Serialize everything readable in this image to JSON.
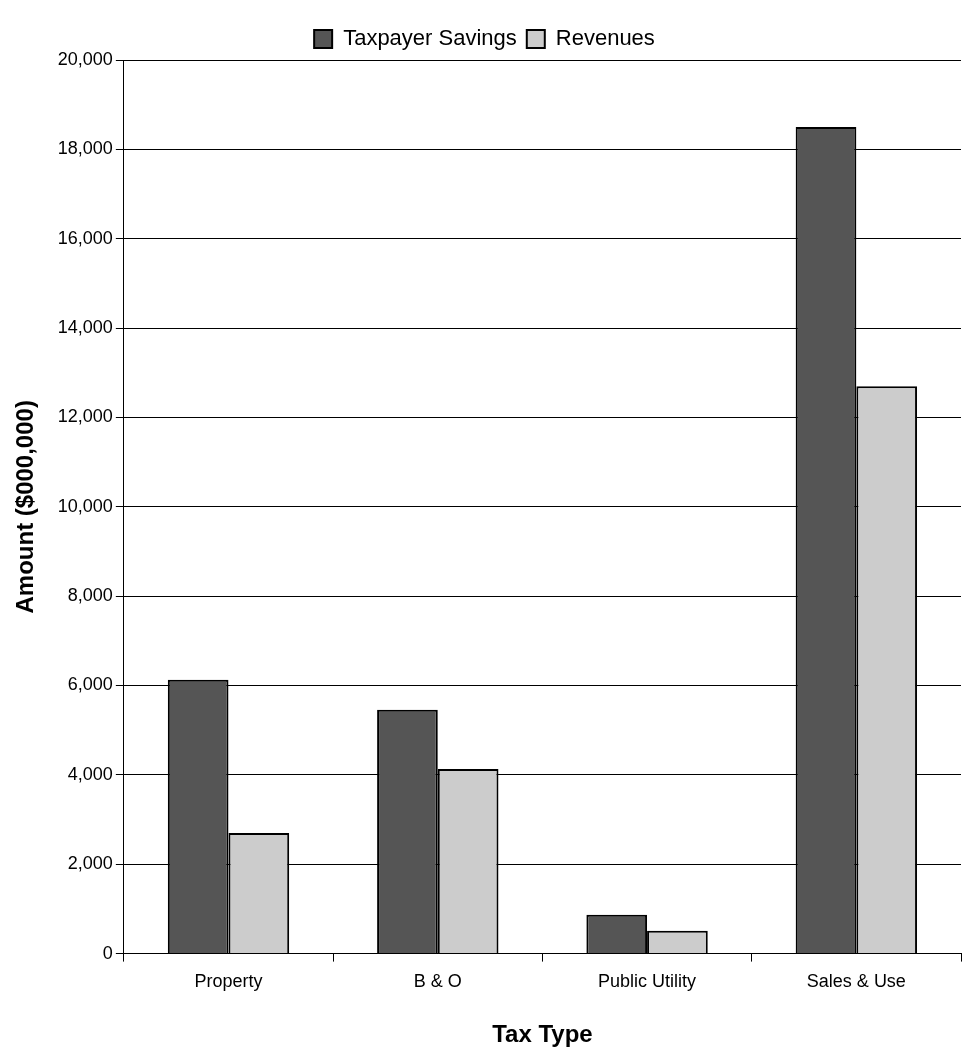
{
  "chart_data": {
    "type": "bar",
    "xlabel": "Tax Type",
    "ylabel": "Amount ($000,000)",
    "categories": [
      "Property",
      "B & O",
      "Public Utility",
      "Sales & Use"
    ],
    "series": [
      {
        "name": "Taxpayer Savings",
        "color": "#555555",
        "values": [
          6130,
          5460,
          870,
          18500
        ]
      },
      {
        "name": "Revenues",
        "color": "#cccccc",
        "values": [
          2700,
          4130,
          510,
          12700
        ]
      }
    ],
    "ylim": [
      0,
      20000
    ],
    "yticks": [
      {
        "value": 0,
        "label": "0"
      },
      {
        "value": 2000,
        "label": "2,000"
      },
      {
        "value": 4000,
        "label": "4,000"
      },
      {
        "value": 6000,
        "label": "6,000"
      },
      {
        "value": 8000,
        "label": "8,000"
      },
      {
        "value": 10000,
        "label": "10,000"
      },
      {
        "value": 12000,
        "label": "12,000"
      },
      {
        "value": 14000,
        "label": "14,000"
      },
      {
        "value": 16000,
        "label": "16,000"
      },
      {
        "value": 18000,
        "label": "18,000"
      },
      {
        "value": 20000,
        "label": "20,000"
      }
    ],
    "grid": "y",
    "legend": "top"
  }
}
